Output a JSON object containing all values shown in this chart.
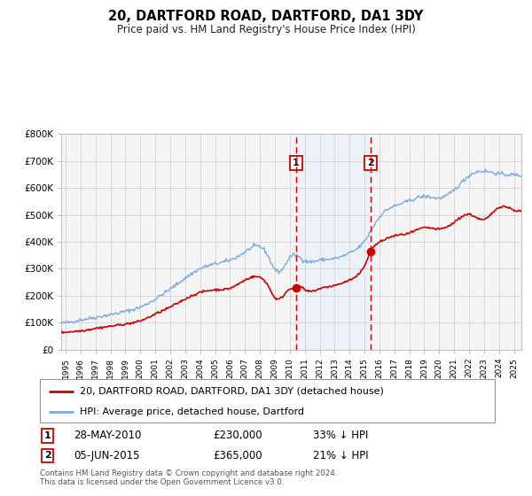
{
  "title": "20, DARTFORD ROAD, DARTFORD, DA1 3DY",
  "subtitle": "Price paid vs. HM Land Registry's House Price Index (HPI)",
  "legend_line1": "20, DARTFORD ROAD, DARTFORD, DA1 3DY (detached house)",
  "legend_line2": "HPI: Average price, detached house, Dartford",
  "annotation_footer": "Contains HM Land Registry data © Crown copyright and database right 2024.\nThis data is licensed under the Open Government Licence v3.0.",
  "sale1_date": "28-MAY-2010",
  "sale1_price": "£230,000",
  "sale1_pct": "33% ↓ HPI",
  "sale1_year": 2010.41,
  "sale1_value": 230000,
  "sale2_date": "05-JUN-2015",
  "sale2_price": "£365,000",
  "sale2_pct": "21% ↓ HPI",
  "sale2_year": 2015.42,
  "sale2_value": 365000,
  "line_color_property": "#cc0000",
  "line_color_hpi": "#7aabdb",
  "shade_color": "#ddeeff",
  "ylim": [
    0,
    800000
  ],
  "yticks": [
    0,
    100000,
    200000,
    300000,
    400000,
    500000,
    600000,
    700000,
    800000
  ],
  "ytick_labels": [
    "£0",
    "£100K",
    "£200K",
    "£300K",
    "£400K",
    "£500K",
    "£600K",
    "£700K",
    "£800K"
  ],
  "xlim_start": 1994.7,
  "xlim_end": 2025.5,
  "background_color": "#f5f5f5",
  "grid_color": "#cccccc"
}
